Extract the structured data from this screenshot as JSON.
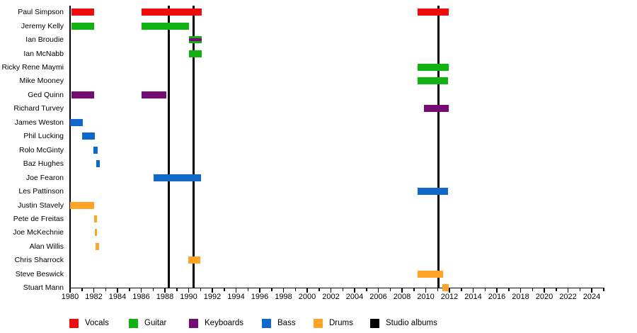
{
  "chart_data": {
    "type": "bar",
    "subtype": "member-timeline-gantt",
    "title": "",
    "x_axis": {
      "min": 1980,
      "max": 2025,
      "label_start": 1980,
      "label_end": 2024,
      "label_step": 2,
      "minor_step": 1,
      "tick_labels": [
        "1980",
        "1982",
        "1984",
        "1986",
        "1988",
        "1990",
        "1992",
        "1994",
        "1996",
        "1998",
        "2000",
        "2002",
        "2004",
        "2006",
        "2008",
        "2010",
        "2012",
        "2014",
        "2016",
        "2018",
        "2020",
        "2022",
        "2024"
      ]
    },
    "legend": [
      {
        "label": "Vocals",
        "color": "#ee0d0d"
      },
      {
        "label": "Guitar",
        "color": "#12b112"
      },
      {
        "label": "Keyboards",
        "color": "#740c74"
      },
      {
        "label": "Bass",
        "color": "#1068c8"
      },
      {
        "label": "Drums",
        "color": "#ffa426"
      },
      {
        "label": "Studio albums",
        "color": "#000000"
      }
    ],
    "studio_album_years": [
      1988.3,
      1990.4,
      2011.1
    ],
    "members": [
      {
        "name": "Paul Simpson",
        "roles": [
          "Vocals"
        ],
        "periods": [
          [
            1980.1,
            1982.05
          ],
          [
            1986.0,
            1991.1
          ],
          [
            2009.3,
            2011.95
          ]
        ]
      },
      {
        "name": "Jeremy Kelly",
        "roles": [
          "Guitar"
        ],
        "periods": [
          [
            1980.1,
            1982.05
          ],
          [
            1986.0,
            1990.05
          ]
        ]
      },
      {
        "name": "Ian Broudie",
        "roles": [
          "Guitar",
          "Keyboards"
        ],
        "periods": [
          [
            1990.0,
            1991.1
          ]
        ]
      },
      {
        "name": "Ian McNabb",
        "roles": [
          "Guitar"
        ],
        "periods": [
          [
            1990.0,
            1991.1
          ]
        ]
      },
      {
        "name": "Ricky Rene Maymi",
        "roles": [
          "Guitar"
        ],
        "periods": [
          [
            2009.3,
            2011.95
          ]
        ]
      },
      {
        "name": "Mike Mooney",
        "roles": [
          "Guitar"
        ],
        "periods": [
          [
            2009.3,
            2011.9
          ]
        ]
      },
      {
        "name": "Ged Quinn",
        "roles": [
          "Keyboards"
        ],
        "periods": [
          [
            1980.1,
            1982.05
          ],
          [
            1986.05,
            1988.1
          ]
        ]
      },
      {
        "name": "Richard Turvey",
        "roles": [
          "Keyboards"
        ],
        "periods": [
          [
            2009.85,
            2011.95
          ]
        ]
      },
      {
        "name": "James Weston",
        "roles": [
          "Bass"
        ],
        "periods": [
          [
            1980.0,
            1981.05
          ]
        ]
      },
      {
        "name": "Phil Lucking",
        "roles": [
          "Bass"
        ],
        "periods": [
          [
            1981.0,
            1982.1
          ]
        ]
      },
      {
        "name": "Rolo McGinty",
        "roles": [
          "Bass"
        ],
        "periods": [
          [
            1981.95,
            1982.3
          ]
        ]
      },
      {
        "name": "Baz Hughes",
        "roles": [
          "Bass"
        ],
        "periods": [
          [
            1982.2,
            1982.5
          ]
        ]
      },
      {
        "name": "Joe Fearon",
        "roles": [
          "Bass"
        ],
        "periods": [
          [
            1987.05,
            1991.05
          ]
        ]
      },
      {
        "name": "Les Pattinson",
        "roles": [
          "Bass"
        ],
        "periods": [
          [
            2009.3,
            2011.9
          ]
        ]
      },
      {
        "name": "Justin Stavely",
        "roles": [
          "Drums"
        ],
        "periods": [
          [
            1980.0,
            1982.0
          ]
        ]
      },
      {
        "name": "Pete de Freitas",
        "roles": [
          "Drums"
        ],
        "periods": [
          [
            1982.0,
            1982.25
          ]
        ]
      },
      {
        "name": "Joe McKechnie",
        "roles": [
          "Drums"
        ],
        "periods": [
          [
            1982.1,
            1982.25
          ]
        ]
      },
      {
        "name": "Alan Willis",
        "roles": [
          "Drums"
        ],
        "periods": [
          [
            1982.15,
            1982.45
          ]
        ]
      },
      {
        "name": "Chris Sharrock",
        "roles": [
          "Drums"
        ],
        "periods": [
          [
            1989.95,
            1991.0
          ]
        ]
      },
      {
        "name": "Steve Beswick",
        "roles": [
          "Drums"
        ],
        "periods": [
          [
            2009.3,
            2011.45
          ]
        ]
      },
      {
        "name": "Stuart Mann",
        "roles": [
          "Drums"
        ],
        "periods": [
          [
            2011.4,
            2011.95
          ]
        ]
      }
    ]
  }
}
